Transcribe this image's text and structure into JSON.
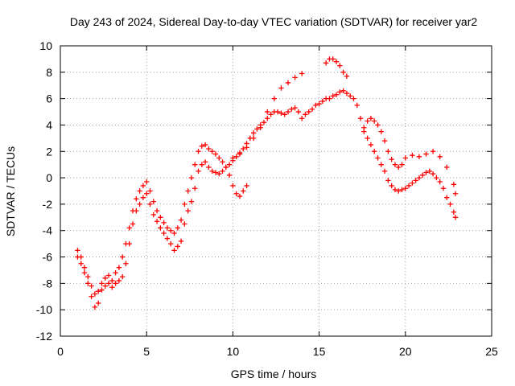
{
  "chart_data": {
    "type": "scatter",
    "title": "Day 243 of 2024, Sidereal Day-to-day VTEC variation (SDTVAR) for receiver yar2",
    "xlabel": "GPS time / hours",
    "ylabel": "SDTVAR / TECUs",
    "xlim": [
      0,
      25
    ],
    "ylim": [
      -12,
      10
    ],
    "xticks": [
      0,
      5,
      10,
      15,
      20,
      25
    ],
    "yticks": [
      -12,
      -10,
      -8,
      -6,
      -4,
      -2,
      0,
      2,
      4,
      6,
      8,
      10
    ],
    "grid": true,
    "marker": "+",
    "color": "#ff0000",
    "series": [
      {
        "x": [
          1.0,
          1.2,
          1.4,
          1.6,
          1.8,
          2.0,
          2.2,
          2.4,
          2.6,
          2.8,
          3.0,
          3.2,
          3.4,
          3.6,
          3.8,
          4.0,
          4.2,
          4.4,
          4.6,
          4.8,
          5.0,
          5.2,
          5.4,
          5.6,
          5.8,
          6.0,
          6.2,
          6.4,
          6.6,
          6.8,
          7.0,
          7.2,
          7.4,
          7.6,
          7.8,
          8.0,
          8.2,
          8.4,
          8.6,
          8.8,
          9.0,
          9.2,
          9.4,
          9.6,
          9.8,
          10.0,
          10.2,
          10.4,
          10.6,
          10.8,
          11.0,
          11.2,
          11.4,
          11.6,
          11.8,
          12.0,
          12.2,
          12.4,
          12.6,
          12.8,
          13.0,
          13.2,
          13.4,
          13.6,
          13.8,
          14.0,
          14.2,
          14.4,
          14.6,
          14.8,
          15.0,
          15.2,
          15.4,
          15.6,
          15.8,
          16.0,
          16.2,
          16.4,
          16.6,
          16.8,
          17.0,
          17.2,
          17.4,
          17.6,
          17.8,
          18.0,
          18.2,
          18.4,
          18.6,
          18.8,
          19.0,
          19.2,
          19.4,
          19.6,
          19.8,
          20.0,
          20.2,
          20.4,
          20.6,
          20.8,
          21.0,
          21.2,
          21.4,
          21.6,
          21.8,
          22.0,
          22.2,
          22.4,
          22.6,
          22.8,
          22.9
        ],
        "y": [
          -6.0,
          -6.5,
          -7.2,
          -8.0,
          -9.0,
          -9.8,
          -9.5,
          -8.5,
          -8.2,
          -8.0,
          -8.3,
          -8.0,
          -7.8,
          -7.5,
          -6.5,
          -5.0,
          -3.5,
          -2.5,
          -2.0,
          -1.5,
          -1.2,
          -2.0,
          -2.8,
          -3.3,
          -3.8,
          -4.2,
          -4.6,
          -5.0,
          -5.5,
          -5.2,
          -4.8,
          -3.5,
          -2.5,
          -1.8,
          -0.8,
          0.5,
          1.0,
          1.2,
          0.8,
          0.5,
          0.4,
          0.3,
          0.5,
          0.8,
          1.0,
          1.3,
          1.6,
          1.9,
          2.2,
          2.6,
          3.0,
          3.4,
          3.7,
          4.0,
          4.2,
          4.5,
          4.8,
          5.0,
          5.0,
          4.9,
          4.8,
          5.0,
          5.2,
          5.3,
          5.0,
          4.5,
          4.8,
          5.0,
          5.2,
          5.5,
          5.6,
          5.8,
          6.0,
          6.0,
          6.2,
          6.3,
          6.5,
          6.6,
          6.4,
          6.2,
          6.0,
          5.5,
          4.5,
          3.5,
          3.0,
          2.5,
          2.0,
          1.5,
          1.0,
          0.5,
          -0.2,
          -0.6,
          -0.9,
          -1.0,
          -0.9,
          -0.8,
          -0.6,
          -0.4,
          -0.2,
          0.0,
          0.2,
          0.4,
          0.5,
          0.3,
          0.0,
          -0.3,
          -0.8,
          -1.5,
          -2.0,
          -2.6,
          -3.0
        ]
      },
      {
        "x": [
          1.0,
          1.2,
          1.4,
          1.6,
          1.8,
          2.0,
          2.2,
          2.4,
          2.6,
          2.8,
          3.0,
          3.2,
          3.4,
          3.6,
          3.8,
          4.0,
          4.2,
          4.4,
          4.6,
          4.8,
          5.0,
          5.2,
          5.4,
          5.6,
          5.8,
          6.0,
          6.2,
          6.4,
          6.6,
          6.8,
          7.0,
          7.2,
          7.4,
          7.6,
          7.8,
          8.0,
          8.2,
          8.4,
          8.6,
          8.8,
          9.0,
          9.2,
          9.4,
          9.6,
          9.8,
          10.0,
          10.2,
          10.4,
          10.6,
          10.8
        ],
        "y": [
          -5.5,
          -6.0,
          -6.8,
          -7.5,
          -8.2,
          -8.8,
          -8.6,
          -8.0,
          -7.6,
          -7.4,
          -7.8,
          -7.2,
          -6.8,
          -6.0,
          -5.0,
          -3.8,
          -2.5,
          -1.6,
          -1.0,
          -0.6,
          -0.3,
          -1.0,
          -1.8,
          -2.5,
          -3.0,
          -3.4,
          -3.8,
          -4.0,
          -4.2,
          -3.8,
          -3.2,
          -2.0,
          -1.0,
          0.0,
          1.0,
          2.0,
          2.4,
          2.5,
          2.2,
          2.0,
          1.8,
          1.5,
          1.2,
          0.8,
          0.2,
          -0.6,
          -1.2,
          -1.4,
          -1.0,
          -0.6
        ]
      },
      {
        "x": [
          10.0,
          10.4,
          10.8,
          11.2,
          11.6,
          12.0,
          12.4,
          12.8,
          13.2,
          13.6,
          14.0,
          15.4,
          15.6,
          15.8,
          16.0,
          16.2,
          16.4,
          16.6,
          17.6,
          17.8,
          18.0,
          18.2,
          18.4,
          18.6,
          18.8,
          19.0,
          19.2,
          19.4,
          19.6,
          19.8,
          20.0,
          20.4,
          20.8,
          21.2,
          21.6,
          22.0,
          22.4,
          22.8,
          22.9
        ],
        "y": [
          1.5,
          1.8,
          2.3,
          3.0,
          3.8,
          5.0,
          6.0,
          6.8,
          7.2,
          7.6,
          7.9,
          8.7,
          9.0,
          9.0,
          8.8,
          8.5,
          8.0,
          7.7,
          3.8,
          4.3,
          4.5,
          4.3,
          4.0,
          3.5,
          2.8,
          2.0,
          1.4,
          1.0,
          0.8,
          1.0,
          1.5,
          1.7,
          1.6,
          1.8,
          2.0,
          1.6,
          0.8,
          -0.5,
          -1.2
        ]
      }
    ]
  }
}
